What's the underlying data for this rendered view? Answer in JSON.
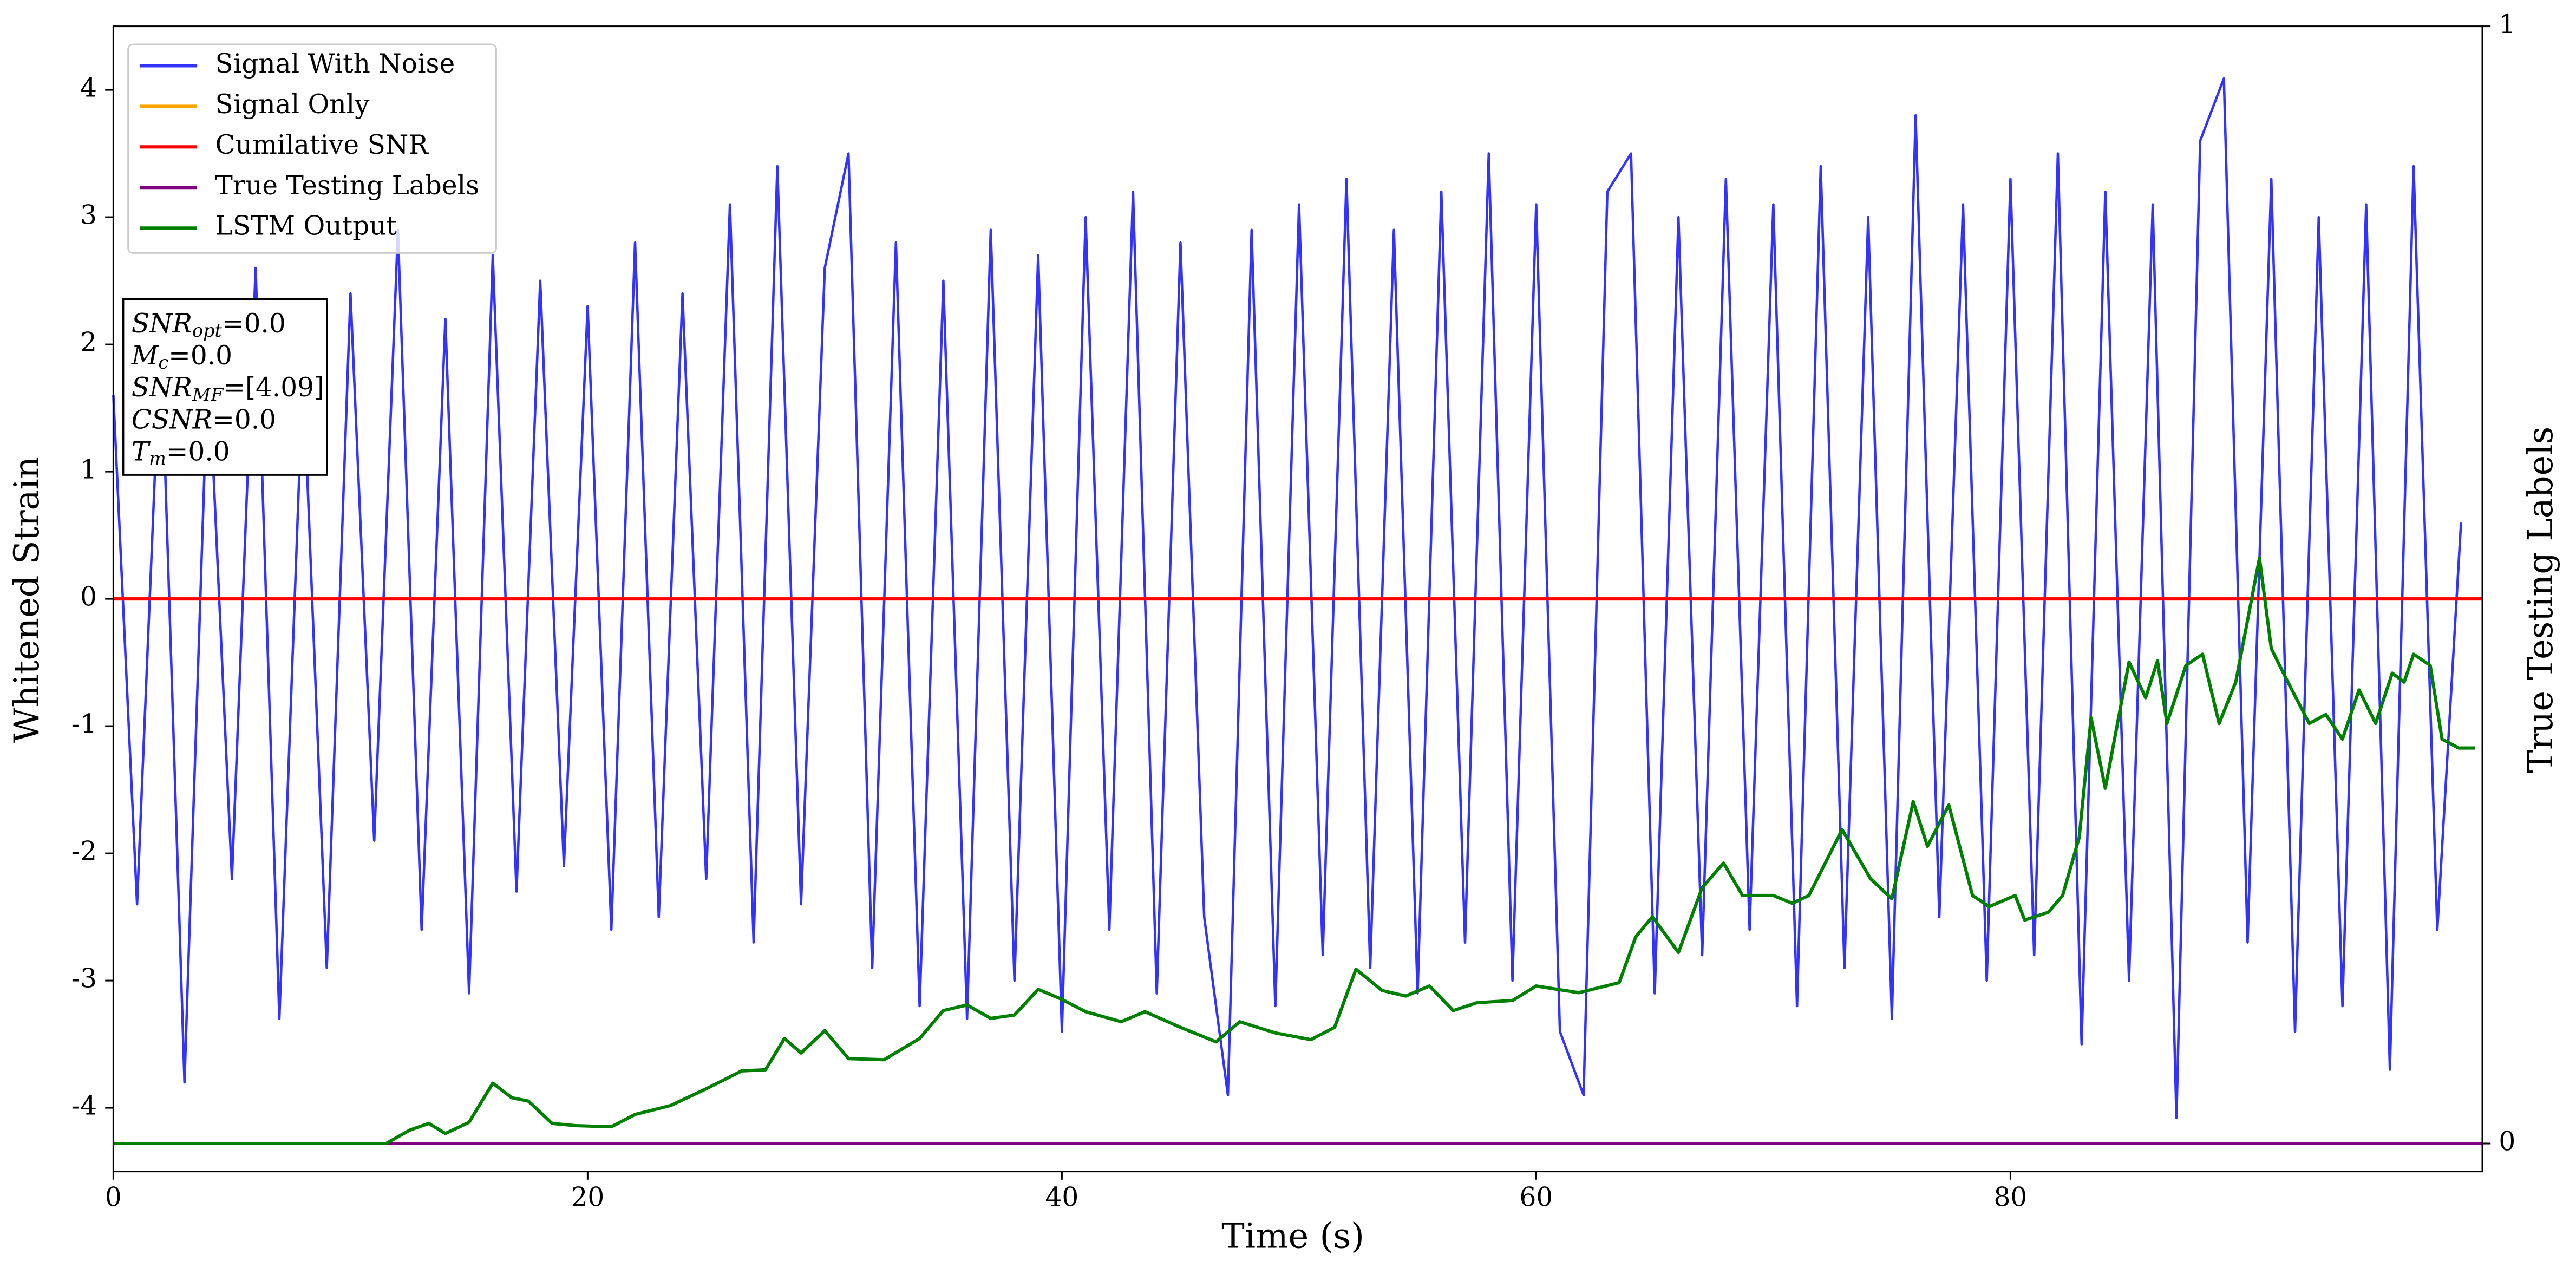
{
  "chart_data": {
    "type": "line",
    "xlabel": "Time (s)",
    "ylabel": "Whitened Strain",
    "y2label": "True Testing Labels",
    "xlim": [
      0,
      99.9
    ],
    "ylim": [
      -4.5,
      4.5
    ],
    "y2lim": [
      -0.025,
      1
    ],
    "xticks": [
      0,
      20,
      40,
      60,
      80
    ],
    "yticks": [
      -4,
      -3,
      -2,
      -1,
      0,
      1,
      2,
      3,
      4
    ],
    "y2ticks": [
      0,
      1
    ],
    "legend": "upper left",
    "series": [
      {
        "name": "Signal With Noise",
        "color": "#3333ff",
        "x": [
          0,
          1,
          2,
          3,
          4,
          5,
          6,
          7,
          8,
          9,
          10,
          11,
          12,
          13,
          14,
          15,
          16,
          17,
          18,
          19,
          20,
          21,
          22,
          23,
          24,
          25,
          26,
          27,
          28,
          29,
          30,
          31,
          32,
          33,
          34,
          35,
          36,
          37,
          38,
          39,
          40,
          41,
          42,
          43,
          44,
          45,
          46,
          47,
          48,
          49,
          50,
          51,
          52,
          53,
          54,
          55,
          56,
          57,
          58,
          59,
          60,
          61,
          62,
          63,
          64,
          65,
          66,
          67,
          68,
          69,
          70,
          71,
          72,
          73,
          74,
          75,
          76,
          77,
          78,
          79,
          80,
          81,
          82,
          83,
          84,
          85,
          86,
          87,
          88,
          89,
          90,
          91,
          92,
          93,
          94,
          95,
          96,
          97,
          98,
          99
        ],
        "values": [
          1.6,
          -2.4,
          2.1,
          -3.8,
          1.9,
          -2.2,
          2.6,
          -3.3,
          1.8,
          -2.9,
          2.4,
          -1.9,
          2.9,
          -2.6,
          2.2,
          -3.1,
          2.7,
          -2.3,
          2.5,
          -2.1,
          2.3,
          -2.6,
          2.8,
          -2.5,
          2.4,
          -2.2,
          3.1,
          -2.7,
          3.4,
          -2.4,
          2.6,
          3.5,
          -2.9,
          2.8,
          -3.2,
          2.5,
          -3.3,
          2.9,
          -3.0,
          2.7,
          -3.4,
          3.0,
          -2.6,
          3.2,
          -3.1,
          2.8,
          -2.5,
          -3.9,
          2.9,
          -3.2,
          3.1,
          -2.8,
          3.3,
          -2.9,
          2.9,
          -3.1,
          3.2,
          -2.7,
          3.5,
          -3.0,
          3.1,
          -3.4,
          -3.9,
          3.2,
          3.5,
          -3.1,
          3.0,
          -2.8,
          3.3,
          -2.6,
          3.1,
          -3.2,
          3.4,
          -2.9,
          3.0,
          -3.3,
          3.8,
          -2.5,
          3.1,
          -3.0,
          3.3,
          -2.8,
          3.5,
          -3.5,
          3.2,
          -3.0,
          3.1,
          -4.08,
          3.6,
          4.09,
          -2.7,
          3.3,
          -3.4,
          3.0,
          -3.2,
          3.1,
          -3.7,
          3.4,
          -2.6,
          0.6
        ]
      },
      {
        "name": "Signal Only",
        "color": "#ffa500",
        "x": [
          0,
          99.9
        ],
        "values": [
          0,
          0
        ]
      },
      {
        "name": "Cumilative SNR",
        "color": "#ff0000",
        "x": [
          0,
          99.9
        ],
        "values": [
          0,
          0
        ]
      },
      {
        "name": "True Testing Labels",
        "color": "#800080",
        "axis": "y2",
        "x": [
          0,
          99.9
        ],
        "values": [
          0,
          0
        ]
      },
      {
        "name": "LSTM Output",
        "color": "#008000",
        "axis": "y2",
        "x": [
          0,
          11.5,
          12.5,
          13.3,
          14,
          15,
          16,
          16.8,
          17.5,
          18.5,
          19.5,
          21,
          22,
          23.5,
          25,
          26.5,
          27.5,
          28.3,
          29,
          30,
          31,
          32.5,
          34,
          35,
          36,
          37,
          38,
          39,
          40,
          41,
          42.5,
          43.5,
          45,
          46.5,
          47.5,
          49,
          50.5,
          51.5,
          52.4,
          53.5,
          54.5,
          55.5,
          56.5,
          57.5,
          59,
          60,
          61.8,
          63.5,
          64.2,
          64.9,
          66,
          67,
          67.9,
          68.7,
          70,
          70.8,
          71.5,
          72.9,
          74.1,
          75,
          75.9,
          76.5,
          77.4,
          78.4,
          79.1,
          80.2,
          80.6,
          81.6,
          82.2,
          82.9,
          83.4,
          84,
          85,
          85.7,
          86.2,
          86.6,
          87.4,
          88.1,
          88.8,
          89.5,
          90.5,
          91,
          91.7,
          92.6,
          93.3,
          94,
          94.7,
          95.4,
          96.1,
          96.6,
          97,
          97.7,
          98.2,
          98.9,
          99.6
        ],
        "values": [
          0,
          0,
          0.012,
          0.018,
          0.009,
          0.019,
          0.054,
          0.041,
          0.038,
          0.018,
          0.016,
          0.015,
          0.026,
          0.034,
          0.049,
          0.065,
          0.066,
          0.094,
          0.081,
          0.101,
          0.076,
          0.075,
          0.094,
          0.119,
          0.124,
          0.112,
          0.115,
          0.138,
          0.129,
          0.118,
          0.109,
          0.118,
          0.104,
          0.091,
          0.109,
          0.099,
          0.093,
          0.104,
          0.156,
          0.137,
          0.132,
          0.141,
          0.119,
          0.126,
          0.128,
          0.141,
          0.135,
          0.144,
          0.185,
          0.203,
          0.171,
          0.229,
          0.251,
          0.222,
          0.222,
          0.215,
          0.222,
          0.281,
          0.237,
          0.219,
          0.306,
          0.266,
          0.303,
          0.222,
          0.212,
          0.222,
          0.2,
          0.207,
          0.222,
          0.274,
          0.381,
          0.318,
          0.431,
          0.399,
          0.432,
          0.376,
          0.428,
          0.438,
          0.376,
          0.413,
          0.524,
          0.443,
          0.413,
          0.376,
          0.384,
          0.362,
          0.406,
          0.376,
          0.421,
          0.413,
          0.438,
          0.428,
          0.362,
          0.354,
          0.354
        ]
      }
    ],
    "annotation": [
      {
        "text": "SNR",
        "sub": "opt",
        "value": "=0.0"
      },
      {
        "text": "M",
        "sub": "c",
        "value": "=0.0"
      },
      {
        "text": "SNR",
        "sub": "MF",
        "value": "=[4.09]"
      },
      {
        "text": "CSNR",
        "value": "=0.0"
      },
      {
        "text": "T",
        "sub": "m",
        "value": "=0.0"
      }
    ]
  }
}
